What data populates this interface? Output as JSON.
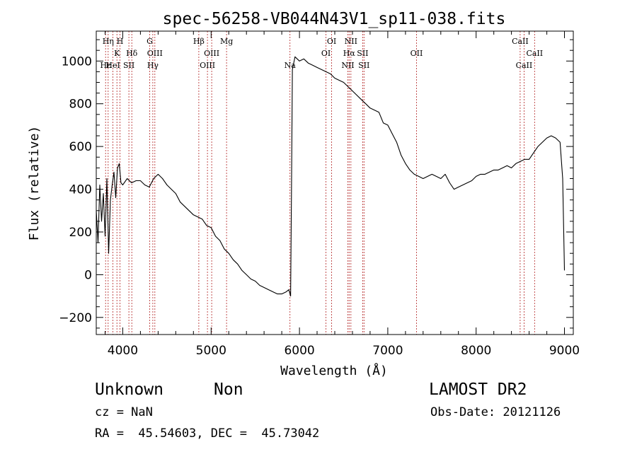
{
  "chart_data": {
    "type": "line",
    "title": "spec-56258-VB044N43V1_sp11-038.fits",
    "xlabel": "Wavelength (Å)",
    "ylabel": "Flux (relative)",
    "xlim": [
      3700,
      9100
    ],
    "ylim": [
      -280,
      1140
    ],
    "x_ticks": [
      4000,
      5000,
      6000,
      7000,
      8000,
      9000
    ],
    "x_tick_labels": [
      "4000",
      "5000",
      "6000",
      "7000",
      "8000",
      "9000"
    ],
    "y_ticks": [
      -200,
      0,
      200,
      400,
      600,
      800,
      1000
    ],
    "y_tick_labels": [
      "−200",
      "0",
      "200",
      "400",
      "600",
      "800",
      "1000"
    ],
    "grid": false,
    "series": [
      {
        "x": [
          3700,
          3720,
          3740,
          3760,
          3780,
          3800,
          3820,
          3840,
          3860,
          3880,
          3900,
          3920,
          3940,
          3960,
          3980,
          4000,
          4050,
          4100,
          4150,
          4200,
          4250,
          4300,
          4350,
          4400,
          4450,
          4500,
          4550,
          4600,
          4650,
          4700,
          4750,
          4800,
          4850,
          4900,
          4950,
          5000,
          5050,
          5100,
          5150,
          5200,
          5250,
          5300,
          5350,
          5400,
          5450,
          5500,
          5550,
          5600,
          5650,
          5700,
          5750,
          5800,
          5850,
          5880,
          5900,
          5910,
          5920,
          5950,
          6000,
          6050,
          6100,
          6150,
          6200,
          6250,
          6300,
          6350,
          6400,
          6450,
          6500,
          6550,
          6600,
          6650,
          6700,
          6750,
          6800,
          6850,
          6900,
          6950,
          7000,
          7050,
          7100,
          7150,
          7200,
          7250,
          7300,
          7350,
          7400,
          7450,
          7500,
          7550,
          7600,
          7650,
          7700,
          7750,
          7800,
          7850,
          7900,
          7950,
          8000,
          8050,
          8100,
          8150,
          8200,
          8250,
          8300,
          8350,
          8400,
          8450,
          8500,
          8550,
          8600,
          8650,
          8700,
          8750,
          8800,
          8850,
          8900,
          8950,
          8980,
          9000
        ],
        "y": [
          300,
          150,
          420,
          250,
          380,
          180,
          450,
          100,
          350,
          420,
          480,
          360,
          500,
          520,
          430,
          420,
          450,
          430,
          440,
          440,
          420,
          410,
          450,
          470,
          450,
          420,
          400,
          380,
          340,
          320,
          300,
          280,
          270,
          260,
          230,
          220,
          180,
          160,
          120,
          100,
          70,
          50,
          20,
          0,
          -20,
          -30,
          -50,
          -60,
          -70,
          -80,
          -90,
          -90,
          -80,
          -70,
          -100,
          380,
          960,
          1020,
          1000,
          1010,
          990,
          980,
          970,
          960,
          950,
          940,
          920,
          910,
          900,
          880,
          860,
          840,
          820,
          800,
          780,
          770,
          760,
          710,
          700,
          660,
          620,
          560,
          520,
          490,
          470,
          460,
          450,
          460,
          470,
          460,
          450,
          470,
          430,
          400,
          410,
          420,
          430,
          440,
          460,
          470,
          470,
          480,
          490,
          490,
          500,
          510,
          500,
          520,
          530,
          540,
          540,
          570,
          600,
          620,
          640,
          650,
          640,
          620,
          450,
          20
        ]
      }
    ],
    "line_labels": [
      {
        "name": "Hη",
        "x": 3835,
        "row": 1
      },
      {
        "name": "H",
        "x": 3969,
        "row": 1
      },
      {
        "name": "K",
        "x": 3934,
        "row": 2
      },
      {
        "name": "Hδ",
        "x": 4102,
        "row": 2
      },
      {
        "name": "HeI",
        "x": 3889,
        "row": 3
      },
      {
        "name": "SII",
        "x": 4069,
        "row": 3
      },
      {
        "name": "Hε",
        "x": 3806,
        "row": 3
      },
      {
        "name": "G",
        "x": 4305,
        "row": 1
      },
      {
        "name": "OIII",
        "x": 4363,
        "row": 2
      },
      {
        "name": "Hγ",
        "x": 4340,
        "row": 3
      },
      {
        "name": "Hβ",
        "x": 4861,
        "row": 1
      },
      {
        "name": "Mg",
        "x": 5175,
        "row": 1
      },
      {
        "name": "OIII",
        "x": 5007,
        "row": 2
      },
      {
        "name": "OIII",
        "x": 4959,
        "row": 3
      },
      {
        "name": "Na",
        "x": 5893,
        "row": 3
      },
      {
        "name": "OI",
        "x": 6364,
        "row": 1
      },
      {
        "name": "OI",
        "x": 6300,
        "row": 2
      },
      {
        "name": "NII",
        "x": 6583,
        "row": 1
      },
      {
        "name": "Hα",
        "x": 6563,
        "row": 2
      },
      {
        "name": "SII",
        "x": 6716,
        "row": 2
      },
      {
        "name": "NII",
        "x": 6548,
        "row": 3
      },
      {
        "name": "SII",
        "x": 6731,
        "row": 3
      },
      {
        "name": "OII",
        "x": 7325,
        "row": 2
      },
      {
        "name": "CaII",
        "x": 8498,
        "row": 1
      },
      {
        "name": "CaII",
        "x": 8662,
        "row": 2
      },
      {
        "name": "CaII",
        "x": 8542,
        "row": 3
      }
    ],
    "line_marker_x": [
      3806,
      3835,
      3889,
      3934,
      3969,
      4069,
      4102,
      4305,
      4340,
      4363,
      4861,
      4959,
      5007,
      5175,
      5893,
      6300,
      6364,
      6548,
      6563,
      6583,
      6716,
      6731,
      7325,
      8498,
      8542,
      8662
    ]
  },
  "info": {
    "object_class": "Unknown",
    "subclass": "Non",
    "survey": "LAMOST DR2",
    "cz": "cz = NaN",
    "obs_date": "Obs-Date: 20121126",
    "radec": "RA =  45.54603, DEC =  45.73042"
  }
}
